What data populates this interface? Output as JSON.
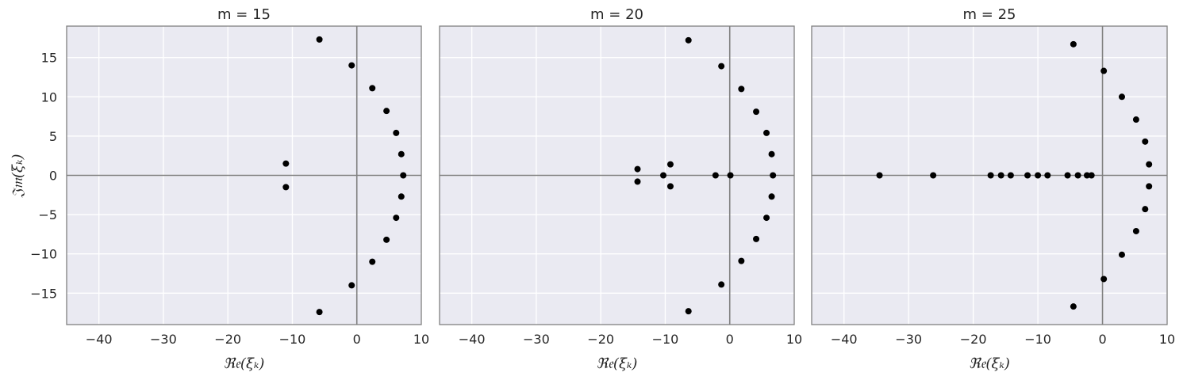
{
  "figure": {
    "ylabel": "𝔍𝔪(ξₖ)",
    "xlabel": "ℜ𝔢(ξₖ)"
  },
  "chart_data": [
    {
      "type": "scatter",
      "title": "m = 15",
      "xlabel": "ℜ𝔢(ξₖ)",
      "ylabel": "𝔍𝔪(ξₖ)",
      "xlim": [
        -45,
        10
      ],
      "ylim": [
        -19,
        19
      ],
      "xticks": [
        -40,
        -30,
        -20,
        -10,
        0,
        10
      ],
      "xtick_labels": [
        "−40",
        "−30",
        "−20",
        "−10",
        "0",
        "10"
      ],
      "yticks": [
        15,
        10,
        5,
        0,
        -5,
        -10,
        -15
      ],
      "ytick_labels": [
        "15",
        "10",
        "5",
        "0",
        "−5",
        "−10",
        "−15"
      ],
      "grid": true,
      "marker_color": "#000000",
      "points": [
        [
          -5.8,
          17.3
        ],
        [
          -0.8,
          14.0
        ],
        [
          2.4,
          11.1
        ],
        [
          4.6,
          8.2
        ],
        [
          6.1,
          5.4
        ],
        [
          6.9,
          2.7
        ],
        [
          7.2,
          0.0
        ],
        [
          6.9,
          -2.7
        ],
        [
          6.1,
          -5.4
        ],
        [
          4.6,
          -8.2
        ],
        [
          2.4,
          -11.0
        ],
        [
          -0.8,
          -14.0
        ],
        [
          -5.8,
          -17.4
        ],
        [
          -11.0,
          1.5
        ],
        [
          -11.0,
          -1.5
        ]
      ]
    },
    {
      "type": "scatter",
      "title": "m = 20",
      "xlabel": "ℜ𝔢(ξₖ)",
      "ylabel": "",
      "xlim": [
        -45,
        10
      ],
      "ylim": [
        -19,
        19
      ],
      "xticks": [
        -40,
        -30,
        -20,
        -10,
        0,
        10
      ],
      "xtick_labels": [
        "−40",
        "−30",
        "−20",
        "−10",
        "0",
        "10"
      ],
      "grid": true,
      "marker_color": "#000000",
      "points": [
        [
          -6.4,
          17.2
        ],
        [
          -1.3,
          13.9
        ],
        [
          1.8,
          11.0
        ],
        [
          4.1,
          8.1
        ],
        [
          5.7,
          5.4
        ],
        [
          6.5,
          2.7
        ],
        [
          6.7,
          0.0
        ],
        [
          6.5,
          -2.7
        ],
        [
          5.7,
          -5.4
        ],
        [
          4.1,
          -8.1
        ],
        [
          1.8,
          -10.9
        ],
        [
          -1.3,
          -13.9
        ],
        [
          -6.4,
          -17.3
        ],
        [
          -14.3,
          0.8
        ],
        [
          -14.3,
          -0.8
        ],
        [
          -10.3,
          0.0
        ],
        [
          -9.2,
          1.4
        ],
        [
          -9.2,
          -1.4
        ],
        [
          -2.2,
          0.0
        ],
        [
          0.1,
          0.0
        ]
      ]
    },
    {
      "type": "scatter",
      "title": "m = 25",
      "xlabel": "ℜ𝔢(ξₖ)",
      "ylabel": "",
      "xlim": [
        -45,
        10
      ],
      "ylim": [
        -19,
        19
      ],
      "xticks": [
        -40,
        -30,
        -20,
        -10,
        0,
        10
      ],
      "xtick_labels": [
        "−40",
        "−30",
        "−20",
        "−10",
        "0",
        "10"
      ],
      "grid": true,
      "marker_color": "#000000",
      "points": [
        [
          -4.5,
          16.7
        ],
        [
          0.2,
          13.3
        ],
        [
          3.0,
          10.0
        ],
        [
          5.2,
          7.1
        ],
        [
          6.6,
          4.3
        ],
        [
          7.2,
          1.4
        ],
        [
          7.2,
          -1.4
        ],
        [
          6.6,
          -4.3
        ],
        [
          5.2,
          -7.1
        ],
        [
          3.0,
          -10.1
        ],
        [
          0.2,
          -13.2
        ],
        [
          -4.5,
          -16.7
        ],
        [
          -34.5,
          0.0
        ],
        [
          -26.2,
          0.0
        ],
        [
          -17.3,
          0.0
        ],
        [
          -15.7,
          0.0
        ],
        [
          -14.2,
          0.0
        ],
        [
          -11.6,
          0.0
        ],
        [
          -10.0,
          0.0
        ],
        [
          -8.5,
          0.0
        ],
        [
          -5.4,
          0.0
        ],
        [
          -3.8,
          0.0
        ],
        [
          -2.4,
          0.0
        ],
        [
          -1.7,
          0.0
        ]
      ]
    }
  ]
}
